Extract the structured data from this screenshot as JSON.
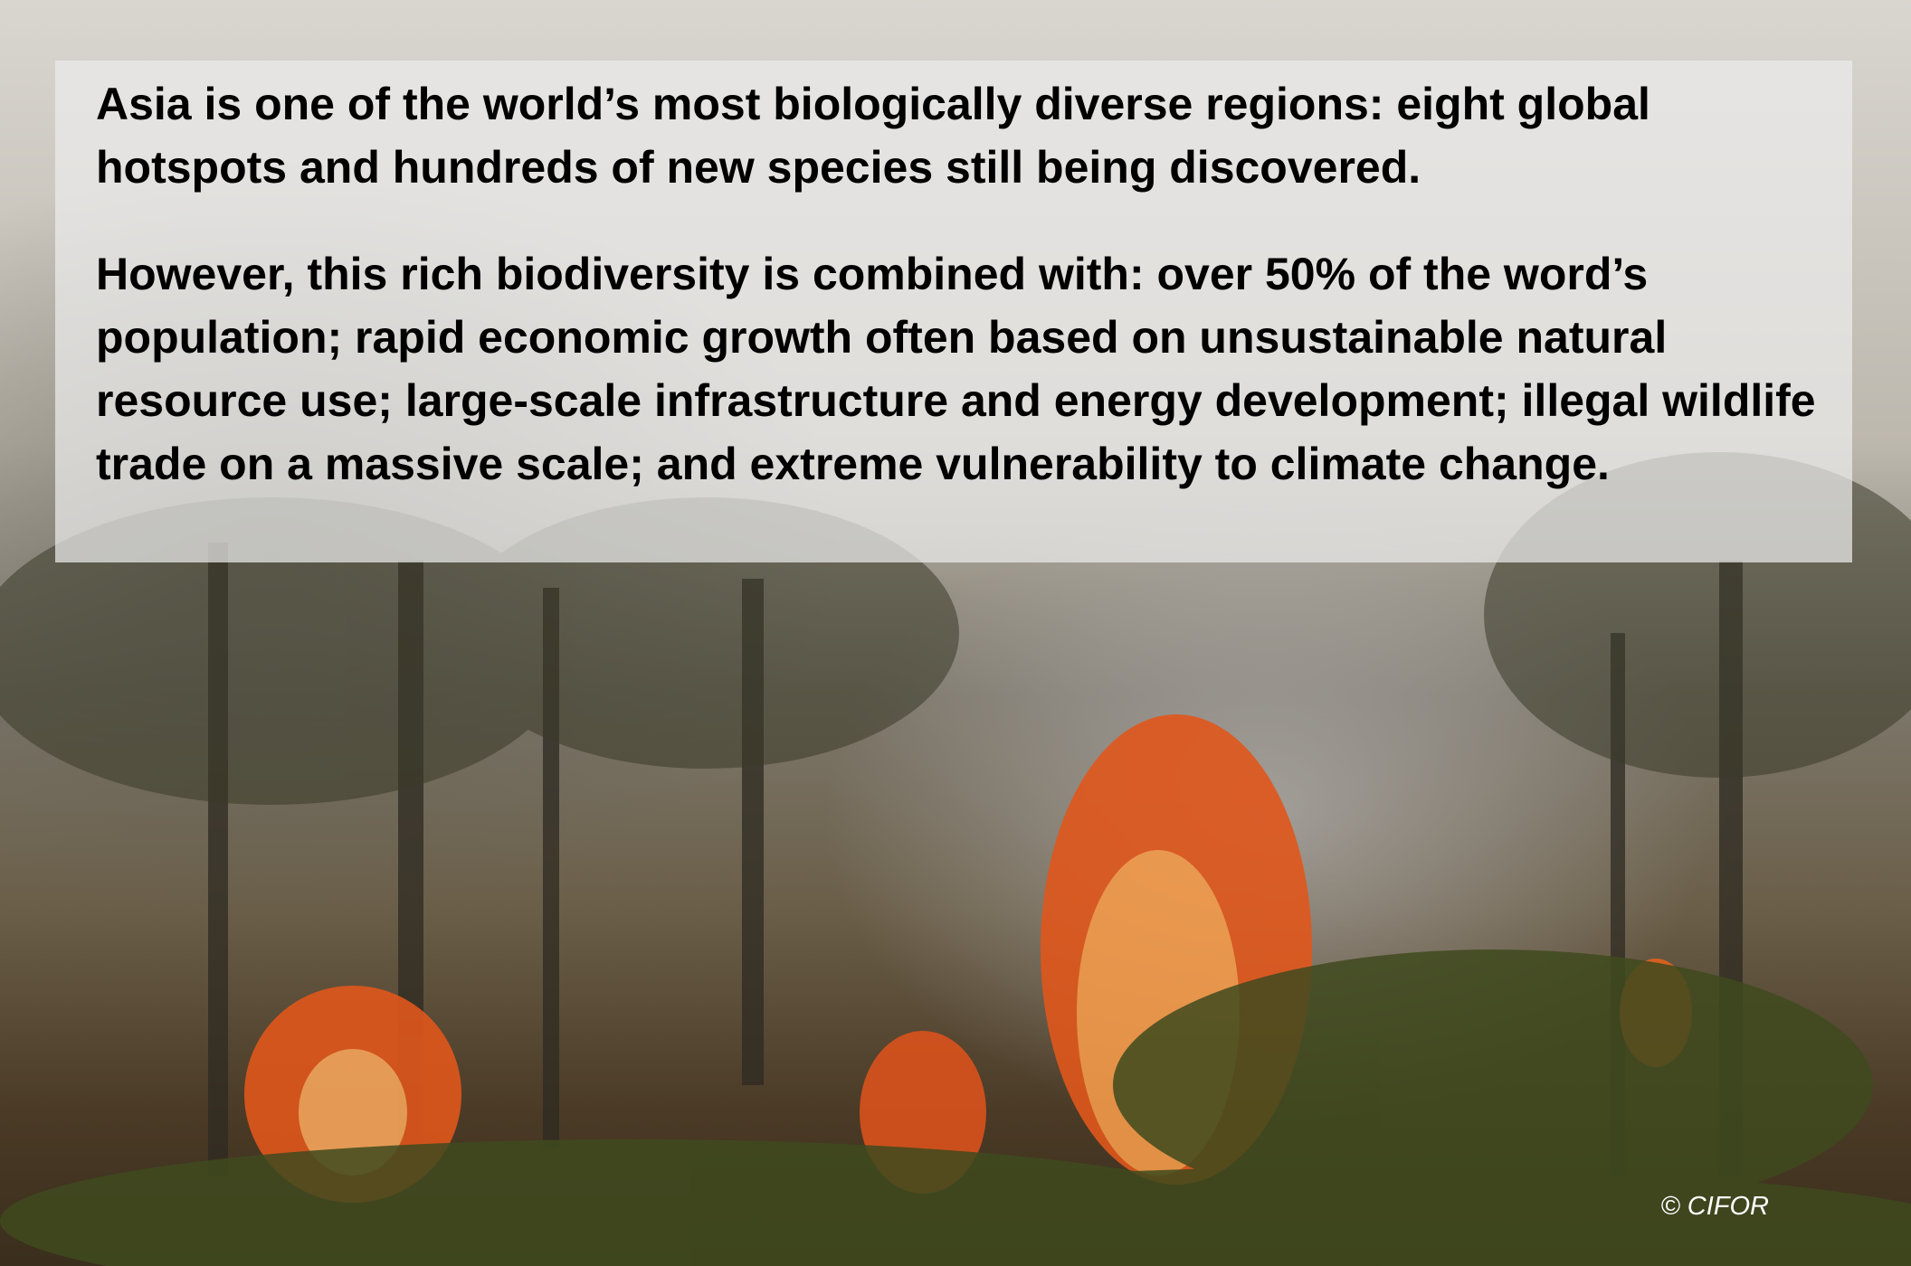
{
  "slide": {
    "paragraphs": [
      "Asia is one of the world’s most biologically diverse regions: eight global hotspots and hundreds of new species still being discovered.",
      "However, this rich biodiversity is combined with: over 50% of the word’s population; rapid economic growth often based on unsustainable natural resource use; large-scale infrastructure and energy development; illegal wildlife trade on a massive scale; and extreme vulnerability to climate change."
    ],
    "credit": "© CIFOR"
  }
}
